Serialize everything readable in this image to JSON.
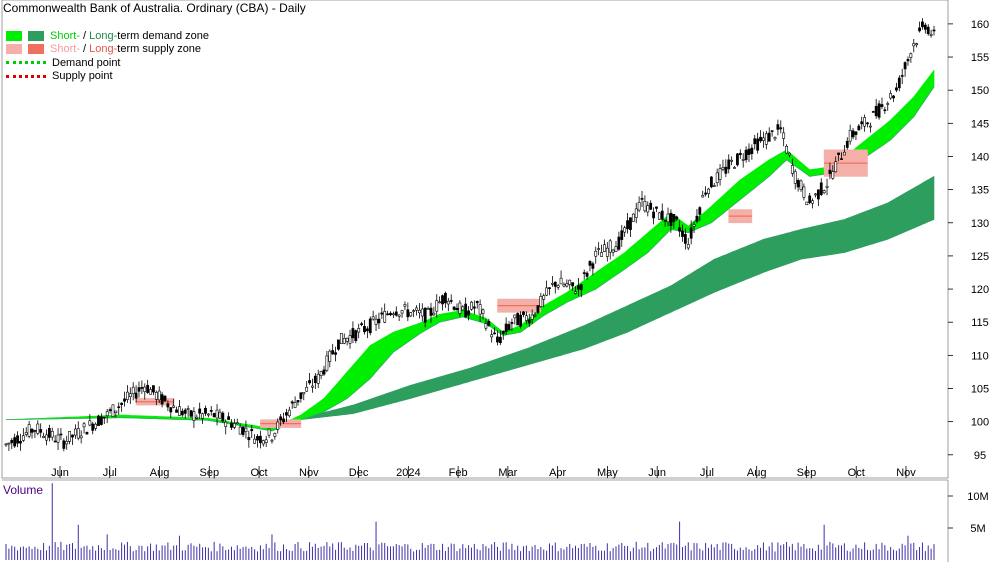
{
  "title": "Commonwealth Bank of Australia. Ordinary (CBA) - Daily",
  "legend": {
    "demand": {
      "short": "Short-",
      "sep": " / ",
      "long": "Long-",
      "rest": "term demand zone"
    },
    "supply": {
      "short": "Short-",
      "sep": " / ",
      "long": "Long-",
      "rest": "term supply zone"
    },
    "demand_point": "Demand point",
    "supply_point": "Supply point"
  },
  "volume_label": "Volume",
  "colors": {
    "short_demand": "#00ee00",
    "long_demand": "#2e9e5e",
    "short_supply": "#f4b0a8",
    "long_supply": "#f07060",
    "demand_point": "#00cc00",
    "supply_point": "#dd0000",
    "volume_bar": "#3d2fa8",
    "short_label": "#00cc00",
    "long_label": "#1f8a4c",
    "short_supply_label": "#f0a09a",
    "long_supply_label": "#e0584a",
    "volume_label": "#4b0082"
  },
  "chart_data": [
    {
      "type": "candlestick",
      "title": "Commonwealth Bank of Australia. Ordinary (CBA) - Daily",
      "x_ticks": [
        "Jun",
        "Jul",
        "Aug",
        "Sep",
        "Oct",
        "Nov",
        "Dec",
        "2024",
        "Feb",
        "Mar",
        "Apr",
        "May",
        "Jun",
        "Jul",
        "Aug",
        "Sep",
        "Oct",
        "Nov"
      ],
      "y_ticks": [
        95,
        100,
        105,
        110,
        115,
        120,
        125,
        130,
        135,
        140,
        145,
        150,
        155,
        160
      ],
      "ylim": [
        91.5,
        163
      ],
      "grid": false,
      "legend_position": "top-left",
      "price_path": [
        [
          0,
          96.5
        ],
        [
          10,
          99
        ],
        [
          20,
          97
        ],
        [
          35,
          101
        ],
        [
          48,
          105.5
        ],
        [
          55,
          103
        ],
        [
          63,
          101
        ],
        [
          72,
          101
        ],
        [
          80,
          99.5
        ],
        [
          87,
          97.5
        ],
        [
          92,
          98
        ],
        [
          100,
          103
        ],
        [
          108,
          106.5
        ],
        [
          115,
          112
        ],
        [
          122,
          113.5
        ],
        [
          128,
          115
        ],
        [
          134,
          117
        ],
        [
          140,
          116.5
        ],
        [
          146,
          116
        ],
        [
          152,
          119
        ],
        [
          158,
          116.5
        ],
        [
          163,
          117.5
        ],
        [
          170,
          112
        ],
        [
          175,
          115
        ],
        [
          182,
          116
        ],
        [
          190,
          121
        ],
        [
          198,
          120
        ],
        [
          204,
          125
        ],
        [
          212,
          127
        ],
        [
          220,
          133
        ],
        [
          225,
          131.5
        ],
        [
          232,
          130
        ],
        [
          236,
          127
        ],
        [
          242,
          135
        ],
        [
          250,
          138.5
        ],
        [
          260,
          142
        ],
        [
          268,
          144
        ],
        [
          273,
          137
        ],
        [
          278,
          133
        ],
        [
          284,
          136
        ],
        [
          292,
          143
        ],
        [
          300,
          146
        ],
        [
          308,
          150
        ],
        [
          314,
          157
        ],
        [
          318,
          160
        ],
        [
          321,
          158
        ]
      ],
      "bar_count": 322,
      "short_term_demand_zone": {
        "upper": [
          [
            0,
            100.3
          ],
          [
            40,
            101
          ],
          [
            70,
            100.5
          ],
          [
            92,
            99
          ],
          [
            102,
            101
          ],
          [
            110,
            103.5
          ],
          [
            118,
            107.5
          ],
          [
            126,
            111.5
          ],
          [
            134,
            113.5
          ],
          [
            144,
            115
          ],
          [
            150,
            116.2
          ],
          [
            158,
            116.8
          ],
          [
            166,
            115.6
          ],
          [
            172,
            113.5
          ],
          [
            178,
            114.5
          ],
          [
            186,
            117.5
          ],
          [
            194,
            119.5
          ],
          [
            204,
            122.5
          ],
          [
            214,
            125.5
          ],
          [
            222,
            128.5
          ],
          [
            230,
            131.5
          ],
          [
            236,
            129.5
          ],
          [
            244,
            132.5
          ],
          [
            254,
            136.5
          ],
          [
            264,
            139.5
          ],
          [
            270,
            141
          ],
          [
            278,
            138
          ],
          [
            286,
            138.5
          ],
          [
            296,
            142
          ],
          [
            306,
            145.5
          ],
          [
            314,
            149
          ],
          [
            321,
            153
          ]
        ],
        "lower": [
          [
            0,
            100.3
          ],
          [
            40,
            100.6
          ],
          [
            70,
            100.2
          ],
          [
            92,
            98.6
          ],
          [
            102,
            100.3
          ],
          [
            110,
            101.5
          ],
          [
            118,
            103.5
          ],
          [
            126,
            106.5
          ],
          [
            134,
            110.5
          ],
          [
            144,
            113.5
          ],
          [
            150,
            115
          ],
          [
            158,
            115.8
          ],
          [
            166,
            114.8
          ],
          [
            172,
            113
          ],
          [
            178,
            113.5
          ],
          [
            186,
            116
          ],
          [
            194,
            118
          ],
          [
            204,
            120
          ],
          [
            214,
            123
          ],
          [
            222,
            125.5
          ],
          [
            230,
            129
          ],
          [
            236,
            128.5
          ],
          [
            244,
            130
          ],
          [
            254,
            133.5
          ],
          [
            264,
            137
          ],
          [
            270,
            139.5
          ],
          [
            278,
            137
          ],
          [
            286,
            137.5
          ],
          [
            296,
            139.5
          ],
          [
            306,
            142.5
          ],
          [
            314,
            146
          ],
          [
            321,
            150.5
          ]
        ]
      },
      "long_term_demand_zone": {
        "upper": [
          [
            102,
            100.5
          ],
          [
            120,
            102.5
          ],
          [
            140,
            105.5
          ],
          [
            160,
            108
          ],
          [
            180,
            111
          ],
          [
            200,
            114.5
          ],
          [
            215,
            117.5
          ],
          [
            230,
            120.5
          ],
          [
            245,
            124.5
          ],
          [
            262,
            127.5
          ],
          [
            275,
            129
          ],
          [
            290,
            130.5
          ],
          [
            305,
            133
          ],
          [
            321,
            137
          ]
        ],
        "lower": [
          [
            102,
            100.3
          ],
          [
            120,
            101.2
          ],
          [
            140,
            103.5
          ],
          [
            160,
            106
          ],
          [
            180,
            108.5
          ],
          [
            200,
            111
          ],
          [
            215,
            113.5
          ],
          [
            230,
            116.5
          ],
          [
            245,
            119.5
          ],
          [
            262,
            122.5
          ],
          [
            275,
            124.5
          ],
          [
            290,
            125.5
          ],
          [
            305,
            127.5
          ],
          [
            321,
            130.5
          ]
        ]
      },
      "supply_zones": [
        {
          "from": 45,
          "to": 58,
          "upper": 103.5,
          "lower": 102.5
        },
        {
          "from": 88,
          "to": 102,
          "upper": 100.3,
          "lower": 99.1
        },
        {
          "from": 170,
          "to": 185,
          "upper": 118.5,
          "lower": 116.5
        },
        {
          "from": 250,
          "to": 258,
          "upper": 132,
          "lower": 130
        },
        {
          "from": 283,
          "to": 298,
          "upper": 141,
          "lower": 137
        }
      ]
    },
    {
      "type": "bar",
      "title": "Volume",
      "y_ticks": [
        "10M",
        "5M"
      ],
      "y_tick_values": [
        10000000,
        5000000
      ],
      "ylim": [
        0,
        12500000
      ],
      "typical_volume": 1900000,
      "spikes": [
        {
          "bar": 16,
          "value": 12000000
        },
        {
          "bar": 25,
          "value": 5500000
        },
        {
          "bar": 35,
          "value": 4000000
        },
        {
          "bar": 60,
          "value": 3800000
        },
        {
          "bar": 92,
          "value": 4000000
        },
        {
          "bar": 128,
          "value": 6000000
        },
        {
          "bar": 233,
          "value": 6000000
        },
        {
          "bar": 283,
          "value": 5500000
        },
        {
          "bar": 312,
          "value": 3800000
        }
      ]
    }
  ]
}
